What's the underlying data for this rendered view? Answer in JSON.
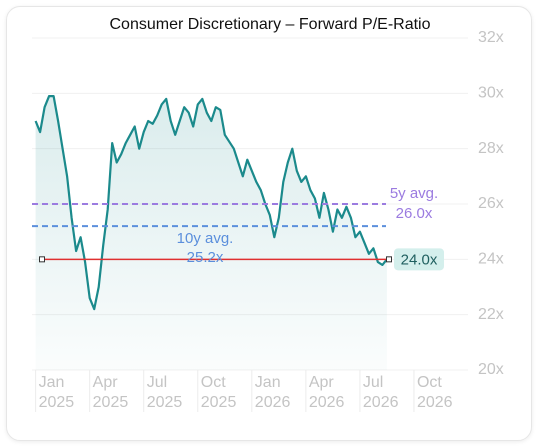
{
  "chart_data": {
    "type": "line",
    "title": "Consumer Discretionary – Forward P/E-Ratio",
    "color": "#1b8a8c",
    "x": [
      0,
      0.25,
      0.5,
      0.75,
      1,
      1.25,
      1.5,
      1.75,
      2,
      2.25,
      2.5,
      2.75,
      3,
      3.25,
      3.5,
      3.75,
      4,
      4.25,
      4.5,
      4.75,
      5,
      5.25,
      5.5,
      5.75,
      6,
      6.25,
      6.5,
      6.75,
      7,
      7.25,
      7.5,
      7.75,
      8,
      8.25,
      8.5,
      8.75,
      9,
      9.25,
      9.5,
      9.75,
      10,
      10.25,
      10.5,
      11,
      11.25,
      11.5,
      11.75,
      12,
      12.25,
      12.5,
      12.75,
      13,
      13.25,
      13.5,
      13.75,
      14,
      14.25,
      14.5,
      14.75,
      15,
      15.25,
      15.5,
      15.75,
      16,
      16.25,
      16.5,
      16.75,
      17,
      17.25,
      17.5,
      17.75,
      18,
      18.25,
      18.5,
      18.75,
      19,
      19.25,
      19.5
    ],
    "values": [
      29.0,
      28.6,
      29.5,
      29.9,
      29.9,
      29.0,
      28.0,
      27.0,
      25.5,
      24.3,
      24.8,
      23.9,
      22.6,
      22.2,
      23.0,
      24.5,
      25.8,
      28.2,
      27.5,
      27.8,
      28.2,
      28.5,
      28.8,
      28.0,
      28.6,
      29.0,
      28.9,
      29.2,
      29.6,
      29.8,
      29.0,
      28.5,
      29.0,
      29.5,
      29.3,
      28.8,
      29.6,
      29.8,
      29.3,
      29.0,
      29.5,
      29.4,
      28.5,
      28.0,
      27.5,
      27.0,
      27.6,
      27.2,
      26.8,
      26.5,
      26.0,
      25.6,
      24.8,
      25.5,
      26.8,
      27.5,
      28.0,
      27.2,
      26.8,
      27.0,
      26.5,
      26.2,
      25.5,
      26.4,
      25.8,
      25.0,
      25.8,
      25.5,
      25.9,
      25.5,
      24.8,
      25.0,
      24.6,
      24.2,
      24.4,
      23.9,
      23.8,
      24.0
    ],
    "xlim": [
      -0.2,
      24
    ],
    "xticks": [
      {
        "value": 0,
        "label": "Jan 2025"
      },
      {
        "value": 3,
        "label": "Apr 2025"
      },
      {
        "value": 6,
        "label": "Jul 2025"
      },
      {
        "value": 9,
        "label": "Oct 2025"
      },
      {
        "value": 12,
        "label": "Jan 2026"
      },
      {
        "value": 15,
        "label": "Apr 2026"
      },
      {
        "value": 18,
        "label": "Jul 2026"
      },
      {
        "value": 21,
        "label": "Oct 2026"
      }
    ],
    "ylim": [
      20,
      32
    ],
    "yticks": [
      {
        "value": 20,
        "label": "20x"
      },
      {
        "value": 22,
        "label": "22x"
      },
      {
        "value": 24,
        "label": "24x"
      },
      {
        "value": 26,
        "label": "26x"
      },
      {
        "value": 28,
        "label": "28x"
      },
      {
        "value": 30,
        "label": "30x"
      },
      {
        "value": 32,
        "label": "32x"
      }
    ],
    "grid": true,
    "reference_lines": [
      {
        "label": "5y avg.",
        "value": 26.0,
        "value_label": "26.0x",
        "color": "#9b7be0",
        "style": "dashed"
      },
      {
        "label": "10y avg.",
        "value": 25.2,
        "value_label": "25.2x",
        "color": "#5b8fdc",
        "style": "dashed"
      },
      {
        "value": 24.0,
        "value_label": "24.0x",
        "color": "#e03030",
        "style": "solid"
      }
    ]
  }
}
